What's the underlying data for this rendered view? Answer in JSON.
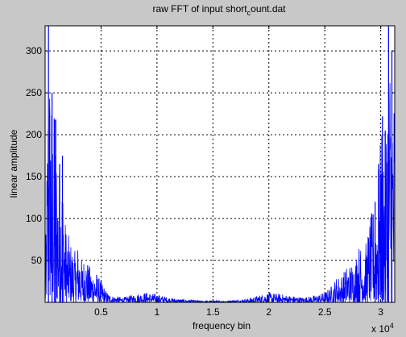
{
  "chart_data": {
    "type": "line",
    "title": {
      "prefix": "raw FFT of input short",
      "subscript": "c",
      "suffix": "ount.dat"
    },
    "xlabel": "frequency bin",
    "ylabel": "linear amplitude",
    "x_exponent": {
      "base": "x 10",
      "power": "4"
    },
    "xlim": [
      0,
      31250
    ],
    "ylim": [
      0,
      330
    ],
    "x_ticks": [
      {
        "value": 5000,
        "label": "0.5"
      },
      {
        "value": 10000,
        "label": "1"
      },
      {
        "value": 15000,
        "label": "1.5"
      },
      {
        "value": 20000,
        "label": "2"
      },
      {
        "value": 25000,
        "label": "2.5"
      },
      {
        "value": 30000,
        "label": "3"
      }
    ],
    "y_ticks": [
      {
        "value": 50,
        "label": "50"
      },
      {
        "value": 100,
        "label": "100"
      },
      {
        "value": 150,
        "label": "150"
      },
      {
        "value": 200,
        "label": "200"
      },
      {
        "value": 250,
        "label": "250"
      },
      {
        "value": 300,
        "label": "300"
      }
    ],
    "grid": true,
    "series": [
      {
        "color": "#0000ff",
        "envelope": [
          [
            0,
            10
          ],
          [
            300,
            330
          ],
          [
            600,
            250
          ],
          [
            900,
            220
          ],
          [
            1200,
            165
          ],
          [
            1500,
            175
          ],
          [
            1800,
            100
          ],
          [
            2100,
            80
          ],
          [
            2400,
            70
          ],
          [
            2700,
            60
          ],
          [
            3000,
            75
          ],
          [
            3300,
            50
          ],
          [
            3600,
            60
          ],
          [
            3900,
            45
          ],
          [
            4200,
            40
          ],
          [
            4500,
            40
          ],
          [
            4800,
            30
          ],
          [
            5100,
            25
          ],
          [
            5400,
            15
          ],
          [
            5700,
            10
          ],
          [
            6000,
            8
          ],
          [
            7000,
            6
          ],
          [
            8000,
            10
          ],
          [
            9000,
            12
          ],
          [
            10000,
            10
          ],
          [
            11000,
            6
          ],
          [
            12000,
            4
          ],
          [
            13000,
            3
          ],
          [
            14000,
            2
          ],
          [
            15000,
            2
          ],
          [
            16000,
            2
          ],
          [
            17000,
            3
          ],
          [
            18000,
            4
          ],
          [
            19000,
            8
          ],
          [
            20000,
            12
          ],
          [
            21000,
            10
          ],
          [
            22000,
            8
          ],
          [
            23000,
            6
          ],
          [
            24000,
            8
          ],
          [
            25000,
            12
          ],
          [
            25600,
            20
          ],
          [
            26000,
            30
          ],
          [
            26600,
            35
          ],
          [
            27000,
            45
          ],
          [
            27600,
            50
          ],
          [
            28000,
            70
          ],
          [
            28600,
            65
          ],
          [
            29000,
            100
          ],
          [
            29500,
            120
          ],
          [
            29800,
            160
          ],
          [
            30100,
            220
          ],
          [
            30400,
            200
          ],
          [
            30700,
            330
          ],
          [
            31000,
            300
          ],
          [
            31250,
            250
          ]
        ],
        "peaks": [
          [
            300,
            330
          ],
          [
            620,
            250
          ],
          [
            850,
            218
          ],
          [
            950,
            218
          ],
          [
            1300,
            165
          ],
          [
            1550,
            175
          ],
          [
            30150,
            222
          ],
          [
            30400,
            205
          ],
          [
            30700,
            330
          ],
          [
            31000,
            300
          ],
          [
            29800,
            165
          ],
          [
            29500,
            120
          ]
        ]
      }
    ]
  },
  "colors": {
    "figure_background": "#c8c8c8",
    "axes_background": "#ffffff",
    "line": "#0000ff",
    "grid": "#000000"
  }
}
